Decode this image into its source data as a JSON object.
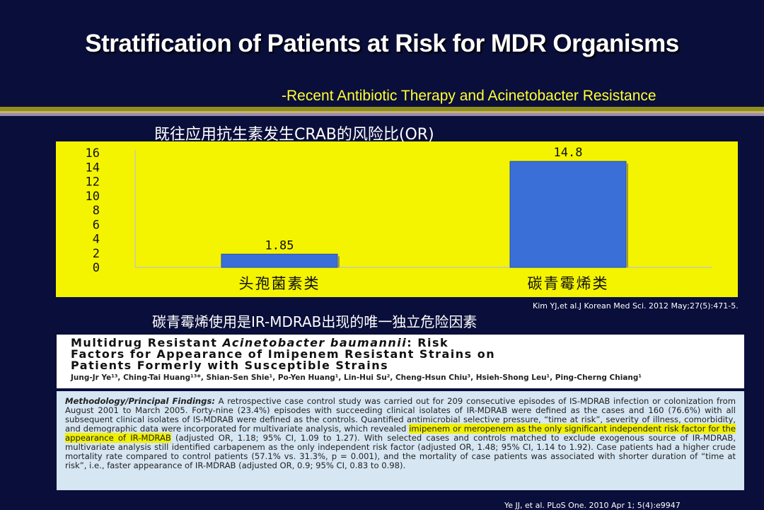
{
  "slide": {
    "title": "Stratification of Patients at Risk for MDR Organisms",
    "subtitle": "-Recent Antibiotic Therapy and Acinetobacter Resistance",
    "chart_title": "既往应用抗生素发生CRAB的风险比(OR)",
    "citation_top": "Kim YJ,et al.J Korean Med Sci. 2012 May;27(5):471-5.",
    "finding": "碳青霉烯使用是IR-MDRAB出现的唯一独立危险因素",
    "citation_bottom": "Ye JJ, et al. PLoS One. 2010 Apr 1; 5(4):e9947"
  },
  "paper": {
    "title_line1_a": "Multidrug Resistant ",
    "title_line1_italic": "Acinetobacter baumannii",
    "title_line1_b": ": Risk",
    "title_line2": "Factors for Appearance of Imipenem Resistant Strains on",
    "title_line3": "Patients Formerly with Susceptible Strains",
    "authors": "Jung-Jr Ye¹³, Ching-Tai Huang¹³*, Shian-Sen Shie¹, Po-Yen Huang¹, Lin-Hui Su², Cheng-Hsun Chiu³, Hsieh-Shong Leu¹, Ping-Cherng Chiang¹",
    "abstract_lead": "Methodology/Principal Findings:",
    "abstract_part1": " A retrospective case control study was carried out for 209 consecutive episodes of IS-MDRAB infection or colonization from August 2001 to March 2005. Forty-nine (23.4%) episodes with succeeding clinical isolates of IR-MDRAB were defined as the cases and 160 (76.6%) with all subsequent clinical isolates of IS-MDRAB were defined as the controls. Quantified antimicrobial selective pressure, “time at risk”, severity of illness, comorbidity, and demographic data were incorporated for multivariate analysis, which revealed ",
    "abstract_highlight": "imipenem or meropenem as the only significant independent risk factor for the appearance of IR-MDRAB",
    "abstract_part2": " (adjusted OR, 1.18; 95% CI, 1.09 to 1.27). With selected cases and controls matched to exclude exogenous source of IR-MDRAB, multivariate analysis still identified carbapenem as the only independent risk factor (adjusted OR, 1.48; 95% CI, 1.14 to 1.92). Case patients had a higher crude mortality rate compared to control patients (57.1% vs. 31.3%, p = 0.001), and the mortality of case patients was associated with shorter duration of “time at risk”, i.e., faster appearance of IR-MDRAB (adjusted OR, 0.9; 95% CI, 0.83 to 0.98)."
  },
  "colors": {
    "background": "#0a0e3a",
    "subtitle": "#ffff33",
    "chart_background": "#f4f400",
    "bar_fill": "#3a6fd8",
    "highlight": "#f0f000"
  },
  "chart_data": {
    "type": "bar",
    "categories": [
      "头孢菌素类",
      "碳青霉烯类"
    ],
    "values": [
      1.85,
      14.8
    ],
    "data_labels": [
      "1.85",
      "14.8"
    ],
    "yticks": [
      0,
      2,
      4,
      6,
      8,
      10,
      12,
      14,
      16
    ],
    "ylim": [
      0,
      16
    ],
    "title": "",
    "xlabel": "",
    "ylabel": "",
    "grid": false,
    "legend": "none"
  }
}
